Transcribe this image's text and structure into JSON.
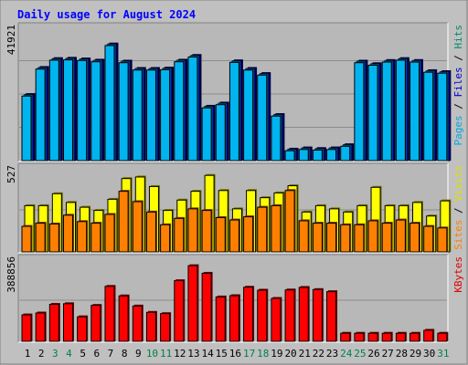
{
  "chart_data": {
    "type": "bar",
    "title": "Daily usage for August 2024",
    "categories": [
      "1",
      "2",
      "3",
      "4",
      "5",
      "6",
      "7",
      "8",
      "9",
      "10",
      "11",
      "12",
      "13",
      "14",
      "15",
      "16",
      "17",
      "18",
      "19",
      "20",
      "21",
      "22",
      "23",
      "24",
      "25",
      "26",
      "27",
      "28",
      "29",
      "30",
      "31"
    ],
    "weekend_days": [
      "3",
      "4",
      "10",
      "11",
      "17",
      "18",
      "24",
      "25",
      "31"
    ],
    "panels": [
      {
        "id": "hits-files-pages",
        "max_label": "41921",
        "ymax": 41921,
        "side_label": [
          {
            "text": "Pages",
            "color": "#00a8e0"
          },
          {
            "text": " / ",
            "color": "#000000"
          },
          {
            "text": "Files",
            "color": "#0000c8"
          },
          {
            "text": " / ",
            "color": "#000000"
          },
          {
            "text": "Hits",
            "color": "#008b6b"
          }
        ],
        "series": [
          {
            "name": "Files",
            "color": "#0000c8",
            "values": [
              20800,
              29300,
              32100,
              32200,
              32000,
              31600,
              36700,
              31300,
              29000,
              29000,
              29100,
              31600,
              33100,
              17100,
              18100,
              31400,
              29000,
              27400,
              14500,
              3600,
              4000,
              3800,
              4000,
              5000,
              31300,
              30500,
              31500,
              32100,
              31500,
              28300,
              28000
            ]
          },
          {
            "name": "Pages",
            "color": "#00b4f0",
            "values": [
              20300,
              28800,
              31600,
              31700,
              31500,
              31100,
              36200,
              30800,
              28500,
              28500,
              28600,
              31100,
              32600,
              16600,
              17600,
              30900,
              28500,
              26900,
              14000,
              3100,
              3500,
              3300,
              3500,
              4500,
              30800,
              30000,
              31000,
              31600,
              31000,
              27800,
              27500
            ]
          }
        ]
      },
      {
        "id": "visits-sites",
        "max_label": "527",
        "ymax": 527,
        "side_label": [
          {
            "text": "Sites",
            "color": "#ff8000"
          },
          {
            "text": " / ",
            "color": "#000000"
          },
          {
            "text": "Visits",
            "color": "#e0e000"
          }
        ],
        "series": [
          {
            "name": "Visits",
            "color": "#ffff00",
            "values": [
              290,
              290,
              365,
              310,
              280,
              260,
              330,
              460,
              470,
              410,
              260,
              325,
              380,
              480,
              385,
              270,
              385,
              340,
              370,
              415,
              250,
              290,
              270,
              250,
              290,
              405,
              290,
              290,
              310,
              225,
              320
            ]
          },
          {
            "name": "Sites",
            "color": "#ff8000",
            "values": [
              160,
              180,
              175,
              230,
              190,
              180,
              235,
              380,
              315,
              250,
              170,
              210,
              270,
              260,
              215,
              200,
              220,
              280,
              290,
              385,
              195,
              180,
              180,
              170,
              170,
              195,
              180,
              200,
              180,
              160,
              150
            ]
          }
        ]
      },
      {
        "id": "kbytes",
        "max_label": "388856",
        "ymax": 388856,
        "side_label": [
          {
            "text": "KBytes",
            "color": "#e00000"
          }
        ],
        "series": [
          {
            "name": "KBytes",
            "color": "#ff0000",
            "values": [
              125000,
              134000,
              175000,
              178000,
              116000,
              170000,
              260000,
              215000,
              167000,
              137000,
              131000,
              287000,
              358000,
              322000,
              210000,
              216000,
              256000,
              242000,
              203000,
              243000,
              255000,
              245000,
              235000,
              38000,
              38000,
              38000,
              38000,
              38000,
              38000,
              52000,
              38000
            ]
          }
        ]
      }
    ]
  },
  "colors": {
    "background": "#c0c0c0",
    "plot_background": "#b8b8b8",
    "title": "#0000ff",
    "weekday_label": "#000000",
    "weekend_label": "#00804b",
    "grid": "#8c8c8c"
  }
}
